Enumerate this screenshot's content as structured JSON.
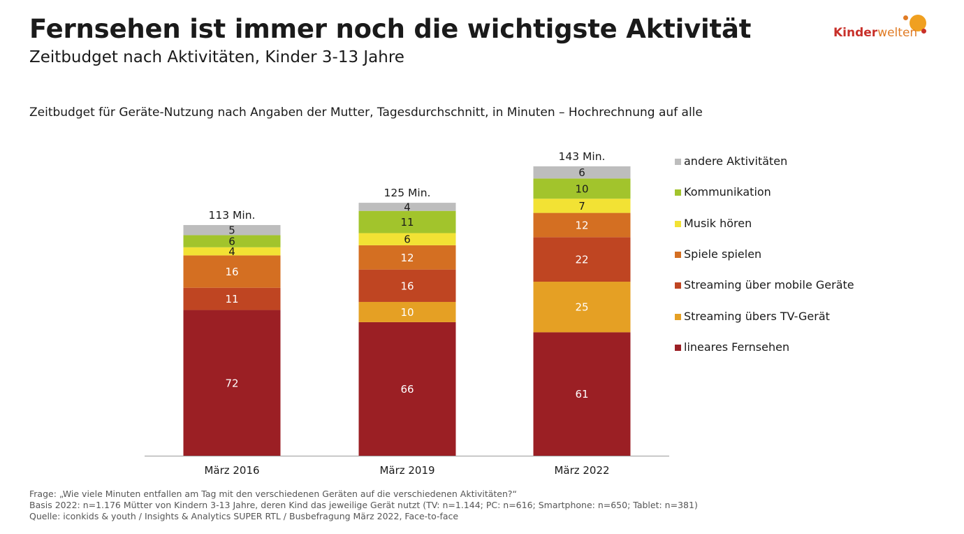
{
  "header": {
    "title": "Fernsehen ist immer noch die wichtigste Aktivität",
    "subtitle": "Zeitbudget nach Aktivitäten, Kinder 3-13 Jahre"
  },
  "logo": {
    "part1": "Kinder",
    "part2": "welten",
    "colors": {
      "primary": "#c8302a",
      "secondary": "#e07b24",
      "dot": "#f0a020"
    }
  },
  "chart_description": "Zeitbudget für Geräte-Nutzung nach Angaben der Mutter, Tagesdurchschnitt, in Minuten – Hochrechnung auf alle",
  "chart_data": {
    "type": "bar",
    "stacked": true,
    "categories": [
      "März 2016",
      "März 2019",
      "März 2022"
    ],
    "totals": [
      "113 Min.",
      "125 Min.",
      "143 Min."
    ],
    "series": [
      {
        "name": "lineares Fernsehen",
        "color": "#9b1f24",
        "values": [
          72,
          66,
          61
        ]
      },
      {
        "name": "Streaming übers TV-Gerät",
        "color": "#e5a024",
        "values": [
          0,
          10,
          25
        ]
      },
      {
        "name": "Streaming über mobile Geräte",
        "color": "#bf4522",
        "values": [
          11,
          16,
          22
        ]
      },
      {
        "name": "Spiele spielen",
        "color": "#d46f22",
        "values": [
          16,
          12,
          12
        ]
      },
      {
        "name": "Musik hören",
        "color": "#f2e234",
        "values": [
          4,
          6,
          7
        ]
      },
      {
        "name": "Kommunikation",
        "color": "#a2c42c",
        "values": [
          6,
          11,
          10
        ]
      },
      {
        "name": "andere Aktivitäten",
        "color": "#bdbdbd",
        "values": [
          5,
          4,
          6
        ]
      }
    ],
    "legend_position": "right",
    "ylim": [
      0,
      143
    ],
    "grid": false
  },
  "footnotes": [
    "Frage: „Wie viele Minuten entfallen am Tag mit den verschiedenen Geräten auf die verschiedenen Aktivitäten?“",
    "Basis 2022: n=1.176 Mütter von Kindern 3-13 Jahre, deren Kind das jeweilige Gerät nutzt (TV: n=1.144; PC: n=616; Smartphone: n=650; Tablet: n=381)",
    "Quelle: iconkids & youth / Insights & Analytics SUPER RTL / Busbefragung März 2022, Face-to-face"
  ]
}
